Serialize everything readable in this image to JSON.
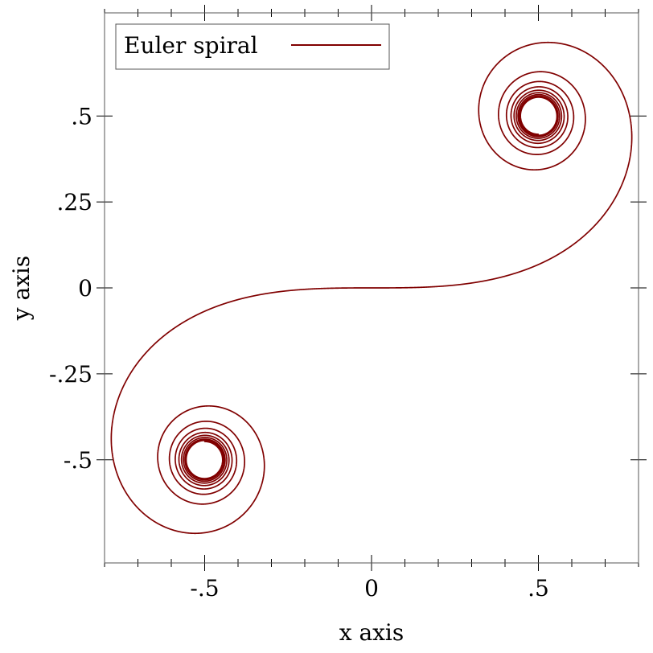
{
  "chart_data": {
    "type": "line",
    "title": "",
    "xlabel": "x axis",
    "ylabel": "y axis",
    "xlim": [
      -0.8,
      0.8
    ],
    "ylim": [
      -0.8,
      0.8
    ],
    "grid": false,
    "legend_position": "top-left",
    "x_ticks": [
      {
        "value": -0.5,
        "label": "-.5"
      },
      {
        "value": 0,
        "label": "0"
      },
      {
        "value": 0.5,
        "label": ".5"
      }
    ],
    "y_ticks": [
      {
        "value": 0.5,
        "label": ".5"
      },
      {
        "value": 0.25,
        "label": ".25"
      },
      {
        "value": 0,
        "label": "0"
      },
      {
        "value": -0.25,
        "label": "-.25"
      },
      {
        "value": -0.5,
        "label": "-.5"
      }
    ],
    "series": [
      {
        "name": "Euler spiral",
        "color": "#800000",
        "function": "Fresnel integrals: x = ∫cos(πt²/2)dt, y = ∫sin(πt²/2)dt",
        "t_range": [
          -6,
          6
        ]
      }
    ]
  }
}
